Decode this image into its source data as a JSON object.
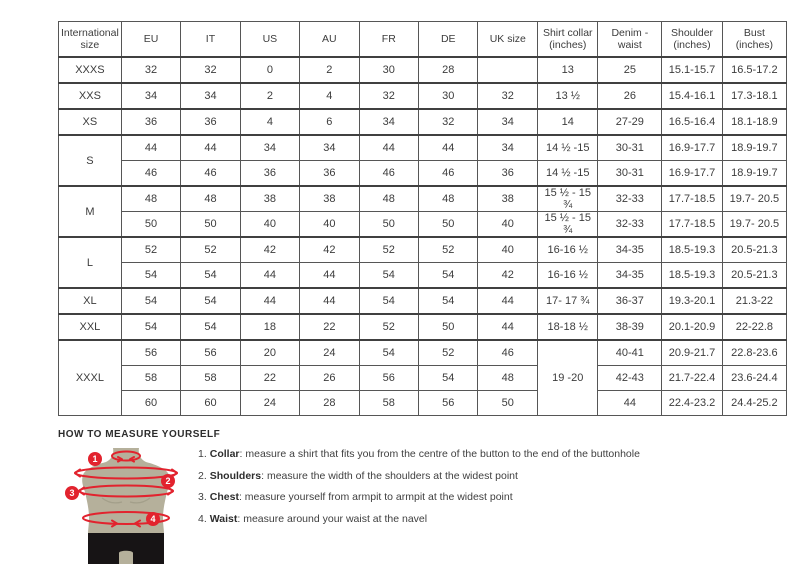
{
  "table": {
    "columns": [
      "International size",
      "EU",
      "IT",
      "US",
      "AU",
      "FR",
      "DE",
      "UK size",
      "Shirt collar (inches)",
      "Denim - waist",
      "Shoulder (inches)",
      "Bust (inches)"
    ],
    "rows": [
      [
        "XXXS",
        "32",
        "32",
        "0",
        "2",
        "30",
        "28",
        "",
        "13",
        "25",
        "15.1-15.7",
        "16.5-17.2"
      ],
      [
        "XXS",
        "34",
        "34",
        "2",
        "4",
        "32",
        "30",
        "32",
        "13 ½",
        "26",
        "15.4-16.1",
        "17.3-18.1"
      ],
      [
        "XS",
        "36",
        "36",
        "4",
        "6",
        "34",
        "32",
        "34",
        "14",
        "27-29",
        "16.5-16.4",
        "18.1-18.9"
      ],
      [
        {
          "t": "S",
          "rs": 2
        },
        "44",
        "44",
        "34",
        "34",
        "44",
        "44",
        "34",
        "14 ½ -15",
        "30-31",
        "16.9-17.7",
        "18.9-19.7"
      ],
      [
        null,
        "46",
        "46",
        "36",
        "36",
        "46",
        "46",
        "36",
        "14 ½ -15",
        "30-31",
        "16.9-17.7",
        "18.9-19.7"
      ],
      [
        {
          "t": "M",
          "rs": 2
        },
        "48",
        "48",
        "38",
        "38",
        "48",
        "48",
        "38",
        "15 ½ - 15 ¾",
        "32-33",
        "17.7-18.5",
        "19.7- 20.5"
      ],
      [
        null,
        "50",
        "50",
        "40",
        "40",
        "50",
        "50",
        "40",
        "15 ½ - 15 ¾",
        "32-33",
        "17.7-18.5",
        "19.7- 20.5"
      ],
      [
        {
          "t": "L",
          "rs": 2
        },
        "52",
        "52",
        "42",
        "42",
        "52",
        "52",
        "40",
        "16-16 ½",
        "34-35",
        "18.5-19.3",
        "20.5-21.3"
      ],
      [
        null,
        "54",
        "54",
        "44",
        "44",
        "54",
        "54",
        "42",
        "16-16 ½",
        "34-35",
        "18.5-19.3",
        "20.5-21.3"
      ],
      [
        "XL",
        "54",
        "54",
        "44",
        "44",
        "54",
        "54",
        "44",
        "17- 17 ¾",
        "36-37",
        "19.3-20.1",
        "21.3-22"
      ],
      [
        "XXL",
        "54",
        "54",
        "18",
        "22",
        "52",
        "50",
        "44",
        "18-18 ½",
        "38-39",
        "20.1-20.9",
        "22-22.8"
      ],
      [
        {
          "t": "XXXL",
          "rs": 3
        },
        "56",
        "56",
        "20",
        "24",
        "54",
        "52",
        "46",
        {
          "t": "19 -20",
          "rs": 3
        },
        "40-41",
        "20.9-21.7",
        "22.8-23.6"
      ],
      [
        null,
        "58",
        "58",
        "22",
        "26",
        "56",
        "54",
        "48",
        null,
        "42-43",
        "21.7-22.4",
        "23.6-24.4"
      ],
      [
        null,
        "60",
        "60",
        "24",
        "28",
        "58",
        "56",
        "50",
        null,
        "44",
        "22.4-23.2",
        "24.4-25.2"
      ]
    ]
  },
  "measure": {
    "title": "HOW TO MEASURE YOURSELF",
    "badges": [
      "1",
      "2",
      "3",
      "4"
    ],
    "steps": [
      {
        "num": "1.",
        "label": "Collar",
        "text": ": measure a shirt that fits you from the centre of the button to the end of the buttonhole"
      },
      {
        "num": "2.",
        "label": "Shoulders",
        "text": ": measure the width of the shoulders at the widest point"
      },
      {
        "num": "3.",
        "label": "Chest",
        "text": ": measure yourself from armpit to armpit at the widest point"
      },
      {
        "num": "4.",
        "label": "Waist",
        "text": ": measure around your waist at the navel"
      }
    ]
  },
  "colors": {
    "accent_red": "#e2232e",
    "mannequin_body": "#b5b09b",
    "mannequin_shorts": "#171415",
    "table_border": "#565656"
  }
}
